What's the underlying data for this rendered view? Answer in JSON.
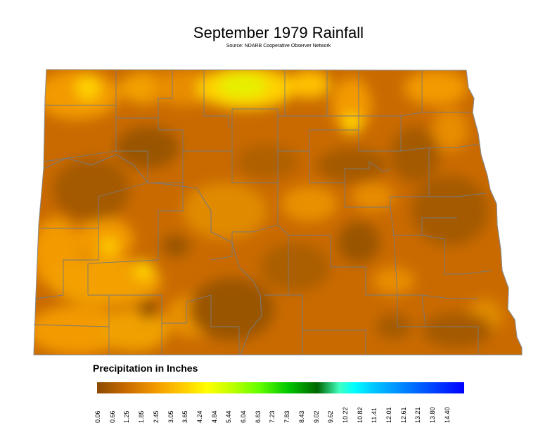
{
  "map": {
    "title": "September 1979 Rainfall",
    "subtitle": "Source: NDARB Cooperative Observer Network",
    "region": "North Dakota"
  },
  "legend": {
    "title": "Precipitation in Inches",
    "ticks": [
      "0.06",
      "0.66",
      "1.25",
      "1.85",
      "2.45",
      "3.05",
      "3.65",
      "4.24",
      "4.84",
      "5.44",
      "6.04",
      "6.63",
      "7.23",
      "7.83",
      "8.43",
      "9.02",
      "9.62",
      "10.22",
      "10.82",
      "11.41",
      "12.01",
      "12.61",
      "13.21",
      "13.80",
      "14.40"
    ],
    "colors": {
      "dark_brown": "#8b4a00",
      "orange": "#f39a00",
      "yellow": "#ffff00",
      "green": "#00c800",
      "cyan": "#00ffff",
      "blue": "#0000ff",
      "county_lines": "#7a7a7a"
    }
  }
}
